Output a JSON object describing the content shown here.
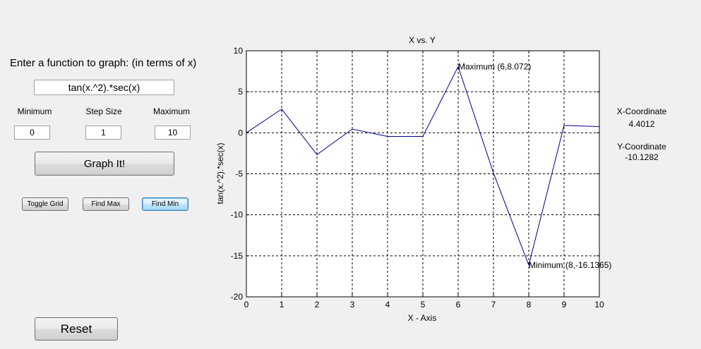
{
  "controls": {
    "prompt": "Enter a function to graph: (in terms of x)",
    "function_value": "tan(x.^2).*sec(x)",
    "minimum_label": "Minimum",
    "step_label": "Step Size",
    "maximum_label": "Maximum",
    "minimum_value": "0",
    "step_value": "1",
    "maximum_value": "10",
    "graph_button": "Graph It!",
    "toggle_grid_button": "Toggle Grid",
    "find_max_button": "Find Max",
    "find_min_button": "Find Min",
    "reset_button": "Reset"
  },
  "coordinates": {
    "x_label": "X-Coordinate",
    "x_value": "4.4012",
    "y_label": "Y-Coordinate",
    "y_value": "-10.1282"
  },
  "chart_data": {
    "type": "line",
    "title": "X vs. Y",
    "xlabel": "X - Axis",
    "ylabel": "tan(x.^2).*sec(x)",
    "x": [
      0,
      1,
      2,
      3,
      4,
      5,
      6,
      7,
      8,
      9,
      10
    ],
    "y": [
      0,
      2.885,
      -2.66,
      0.45,
      -0.44,
      -0.44,
      8.072,
      -4.9,
      -16.1365,
      0.9,
      0.75
    ],
    "xlim": [
      0,
      10
    ],
    "ylim": [
      -20,
      10
    ],
    "xticks": [
      0,
      1,
      2,
      3,
      4,
      5,
      6,
      7,
      8,
      9,
      10
    ],
    "yticks": [
      10,
      5,
      0,
      -5,
      -10,
      -15,
      -20
    ],
    "grid": true,
    "line_color": "#00008b",
    "annotations": [
      {
        "text": "Maximum (6,8.072)",
        "x": 6,
        "y": 8.072
      },
      {
        "text": "Minimum (8,-16.1365)",
        "x": 8,
        "y": -16.1365
      }
    ]
  }
}
